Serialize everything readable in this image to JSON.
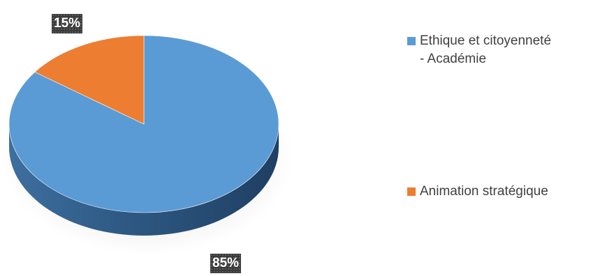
{
  "chart_data": {
    "type": "pie",
    "title": "",
    "series": [
      {
        "name": "Ethique et citoyenneté\n- Académie",
        "value": 85,
        "color": "#5b9bd5",
        "label": "85%"
      },
      {
        "name": "Animation stratégique",
        "value": 15,
        "color": "#ed7d31",
        "label": "15%"
      }
    ],
    "legend_position": "right",
    "style": "3d"
  }
}
